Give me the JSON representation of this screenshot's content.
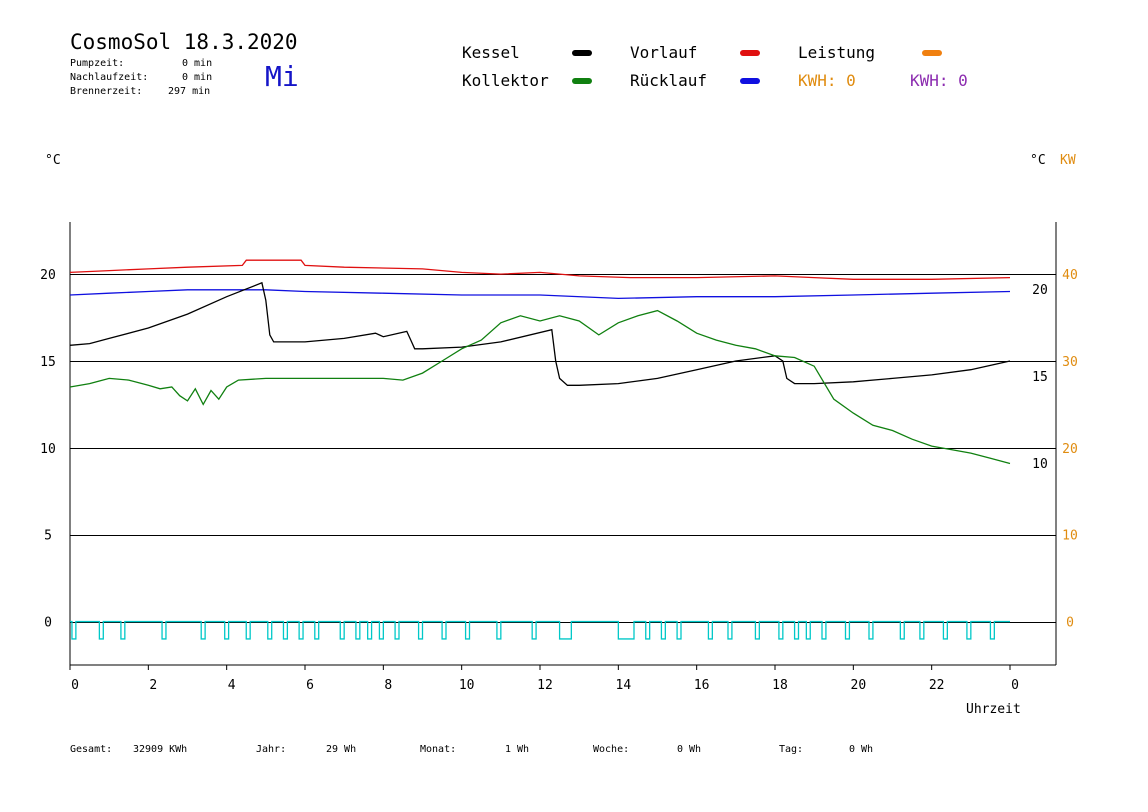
{
  "header": {
    "title": "CosmoSol 18.3.2020",
    "weekday": "Mi",
    "stats": [
      {
        "label": "Pumpzeit:",
        "value": "0 min"
      },
      {
        "label": "Nachlaufzeit:",
        "value": "0 min"
      },
      {
        "label": "Brennerzeit:",
        "value": "297 min"
      }
    ]
  },
  "legend": {
    "kessel": {
      "label": "Kessel",
      "color": "#000000"
    },
    "vorlauf": {
      "label": "Vorlauf",
      "color": "#e01010"
    },
    "leistung": {
      "label": "Leistung",
      "color": "#f08010"
    },
    "kollektor": {
      "label": "Kollektor",
      "color": "#108010"
    },
    "ruecklauf": {
      "label": "Rücklauf",
      "color": "#1010e0"
    },
    "kwh_orange": "KWH: 0",
    "kwh_purple": "KWH: 0",
    "kwh_orange_color": "#e08c10",
    "kwh_purple_color": "#8c2cb0"
  },
  "units": {
    "left": "°C",
    "right_c": "°C",
    "right_kw": "KW"
  },
  "footer": {
    "gesamt_label": "Gesamt:",
    "gesamt_value": "32909 KWh",
    "jahr_label": "Jahr:",
    "jahr_value": "29 Wh",
    "monat_label": "Monat:",
    "monat_value": "1 Wh",
    "woche_label": "Woche:",
    "woche_value": "0 Wh",
    "tag_label": "Tag:",
    "tag_value": "0 Wh"
  },
  "chart_data": {
    "type": "line",
    "xlabel": "Uhrzeit",
    "x_ticks": [
      "0",
      "2",
      "4",
      "6",
      "8",
      "10",
      "12",
      "14",
      "16",
      "18",
      "20",
      "22",
      "0"
    ],
    "xlim": [
      0,
      24
    ],
    "ylim": [
      -2.5,
      23
    ],
    "y_left_ticks": [
      0,
      5,
      10,
      15,
      20
    ],
    "y_right_c_ticks": [
      10,
      15,
      20
    ],
    "y_right_kw_ticks": [
      0,
      10,
      20,
      30,
      40
    ],
    "grid_y": [
      0,
      5,
      10,
      15,
      20
    ],
    "series": [
      {
        "name": "Vorlauf",
        "color": "#e01010",
        "x": [
          0,
          1,
          2,
          3,
          4.4,
          4.5,
          5.9,
          6.0,
          7,
          9,
          10,
          11,
          12,
          13,
          14.3,
          16,
          18,
          19,
          20,
          21,
          22,
          24
        ],
        "y": [
          20.1,
          20.2,
          20.3,
          20.4,
          20.5,
          20.8,
          20.8,
          20.5,
          20.4,
          20.3,
          20.1,
          20.0,
          20.1,
          19.9,
          19.8,
          19.8,
          19.9,
          19.8,
          19.7,
          19.7,
          19.7,
          19.8
        ]
      },
      {
        "name": "Rücklauf",
        "color": "#1010e0",
        "x": [
          0,
          1,
          2,
          3,
          4,
          5,
          6,
          8,
          10,
          12,
          14,
          16,
          18,
          20,
          22,
          24
        ],
        "y": [
          18.8,
          18.9,
          19.0,
          19.1,
          19.1,
          19.1,
          19.0,
          18.9,
          18.8,
          18.8,
          18.6,
          18.7,
          18.7,
          18.8,
          18.9,
          19.0
        ]
      },
      {
        "name": "Kessel",
        "color": "#000000",
        "x": [
          0,
          0.5,
          1,
          2,
          3,
          4,
          4.9,
          5.0,
          5.1,
          5.2,
          6,
          7,
          7.8,
          8.0,
          8.6,
          8.7,
          8.8,
          9.0,
          10,
          11,
          12.3,
          12.4,
          12.5,
          12.7,
          13,
          14,
          15,
          16,
          17,
          18,
          18.2,
          18.3,
          18.5,
          19,
          20,
          21,
          22,
          23,
          24
        ],
        "y": [
          15.9,
          16.0,
          16.3,
          16.9,
          17.7,
          18.7,
          19.5,
          18.5,
          16.5,
          16.1,
          16.1,
          16.3,
          16.6,
          16.4,
          16.7,
          16.2,
          15.7,
          15.7,
          15.8,
          16.1,
          16.8,
          15.0,
          14.0,
          13.6,
          13.6,
          13.7,
          14.0,
          14.5,
          15.0,
          15.3,
          15.0,
          14.0,
          13.7,
          13.7,
          13.8,
          14.0,
          14.2,
          14.5,
          15.0
        ]
      },
      {
        "name": "Kollektor",
        "color": "#108010",
        "x": [
          0,
          0.5,
          1,
          1.5,
          2,
          2.3,
          2.6,
          2.8,
          3.0,
          3.2,
          3.4,
          3.6,
          3.8,
          4.0,
          4.3,
          5,
          6,
          7,
          8,
          8.5,
          9,
          9.5,
          10,
          10.5,
          11,
          11.5,
          12,
          12.5,
          13,
          13.5,
          14,
          14.5,
          15,
          15.5,
          16,
          16.5,
          17,
          17.5,
          18,
          18.5,
          19,
          19.5,
          20,
          20.5,
          21,
          21.5,
          22,
          22.5,
          23,
          23.5,
          24
        ],
        "y": [
          13.5,
          13.7,
          14.0,
          13.9,
          13.6,
          13.4,
          13.5,
          13.0,
          12.7,
          13.4,
          12.5,
          13.3,
          12.8,
          13.5,
          13.9,
          14.0,
          14.0,
          14.0,
          14.0,
          13.9,
          14.3,
          15.0,
          15.7,
          16.2,
          17.2,
          17.6,
          17.3,
          17.6,
          17.3,
          16.5,
          17.2,
          17.6,
          17.9,
          17.3,
          16.6,
          16.2,
          15.9,
          15.7,
          15.3,
          15.2,
          14.7,
          12.8,
          12.0,
          11.3,
          11.0,
          10.5,
          10.1,
          9.9,
          9.7,
          9.4,
          9.1
        ]
      },
      {
        "name": "Pumpe",
        "color": "#00c8c8",
        "x": [
          0.05,
          0.15,
          0.75,
          0.85,
          1.3,
          1.4,
          2.35,
          2.45,
          3.35,
          3.45,
          3.95,
          4.05,
          4.5,
          4.6,
          5.05,
          5.15,
          5.45,
          5.55,
          5.85,
          5.95,
          6.25,
          6.35,
          6.9,
          7.0,
          7.3,
          7.4,
          7.6,
          7.7,
          7.9,
          8.0,
          8.3,
          8.4,
          8.9,
          9.0,
          9.5,
          9.6,
          10.1,
          10.2,
          10.9,
          11.0,
          11.8,
          11.9,
          12.5,
          12.8,
          14.0,
          14.4,
          14.7,
          14.8,
          15.1,
          15.2,
          15.5,
          15.6,
          16.3,
          16.4,
          16.8,
          16.9,
          17.5,
          17.6,
          18.1,
          18.2,
          18.5,
          18.6,
          18.8,
          18.9,
          19.2,
          19.3,
          19.8,
          19.9,
          20.4,
          20.5,
          21.2,
          21.3,
          21.7,
          21.8,
          22.3,
          22.4,
          22.9,
          23.0,
          23.5,
          23.6
        ],
        "y_on": 0.0,
        "y_off": -1.0
      }
    ]
  }
}
